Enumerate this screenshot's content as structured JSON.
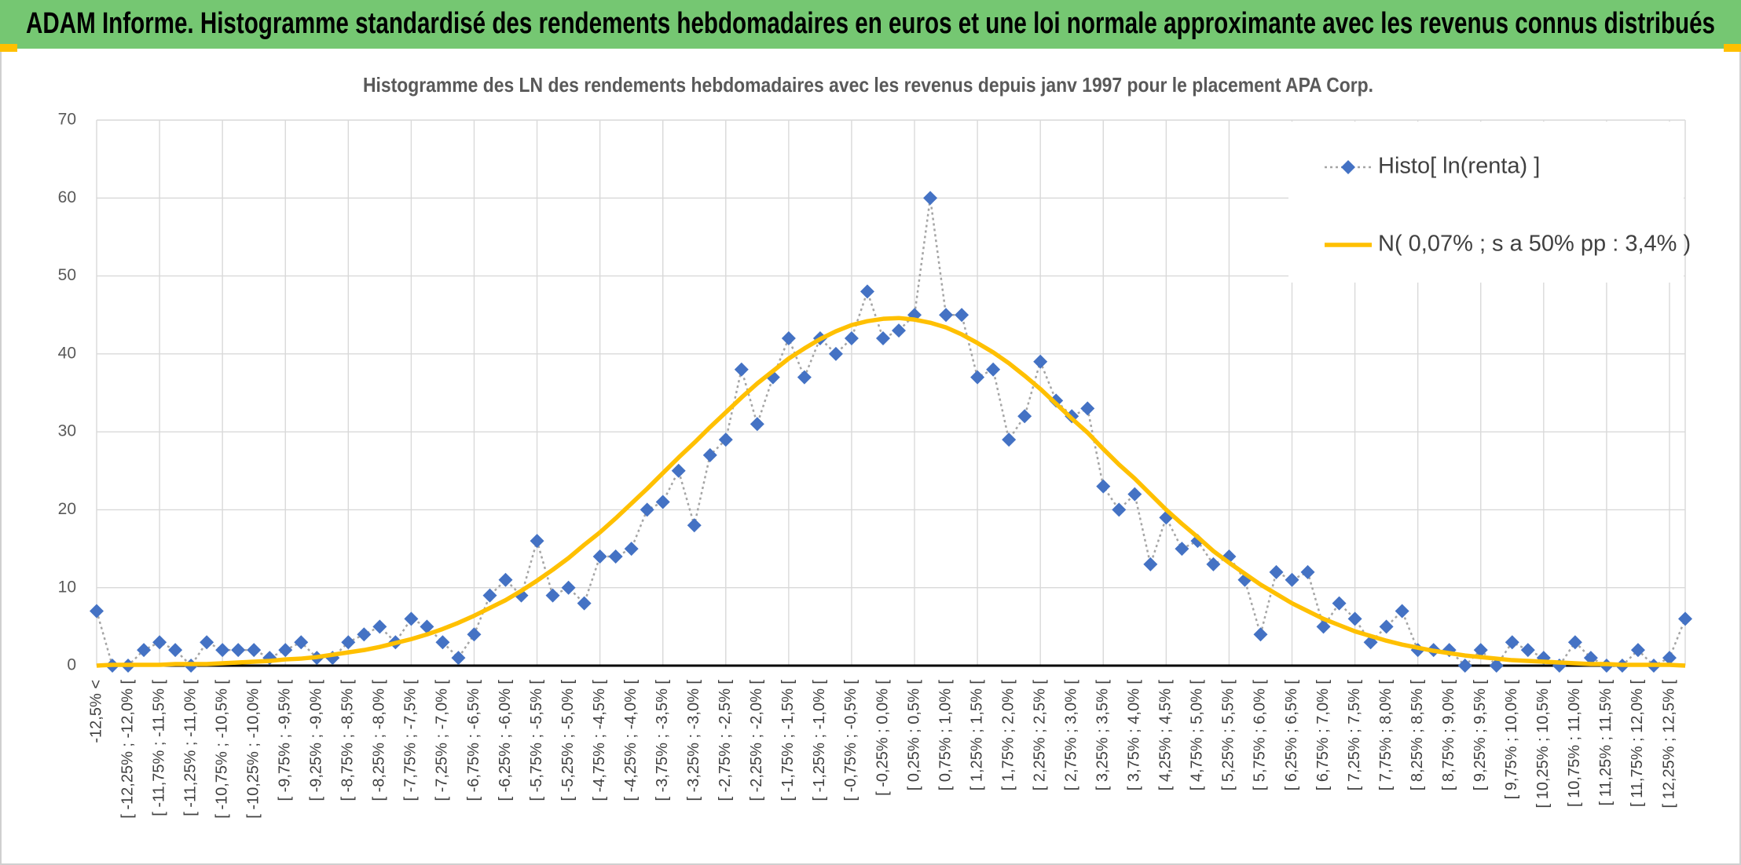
{
  "header": {
    "title": "ADAM Informe. Histogramme standardisé des rendements hebdomadaires en euros et une loi normale approximante avec les revenus connus distribués"
  },
  "chart_data": {
    "type": "line",
    "title": "Histogramme des LN des rendements hebdomadaires avec les revenus depuis janv 1997 pour le placement APA Corp.",
    "categories": [
      "-12,5% <",
      null,
      "[ -12,25% ; -12,0% [",
      null,
      "[ -11,75% ; -11,5% [",
      null,
      "[ -11,25% ; -11,0% [",
      null,
      "[ -10,75% ; -10,5% [",
      null,
      "[ -10,25% ; -10,0% [",
      null,
      "[ -9,75% ; -9,5% [",
      null,
      "[ -9,25% ; -9,0% [",
      null,
      "[ -8,75% ; -8,5% [",
      null,
      "[ -8,25% ; -8,0% [",
      null,
      "[ -7,75% ; -7,5% [",
      null,
      "[ -7,25% ; -7,0% [",
      null,
      "[ -6,75% ; -6,5% [",
      null,
      "[ -6,25% ; -6,0% [",
      null,
      "[ -5,75% ; -5,5% [",
      null,
      "[ -5,25% ; -5,0% [",
      null,
      "[ -4,75% ; -4,5% [",
      null,
      "[ -4,25% ; -4,0% [",
      null,
      "[ -3,75% ; -3,5% [",
      null,
      "[ -3,25% ; -3,0% [",
      null,
      "[ -2,75% ; -2,5% [",
      null,
      "[ -2,25% ; -2,0% [",
      null,
      "[ -1,75% ; -1,5% [",
      null,
      "[ -1,25% ; -1,0% [",
      null,
      "[ -0,75% ; -0,5% [",
      null,
      "[ -0,25% ; 0,0% [",
      null,
      "[ 0,25% ; 0,5% [",
      null,
      "[ 0,75% ; 1,0% [",
      null,
      "[ 1,25% ; 1,5% [",
      null,
      "[ 1,75% ; 2,0% [",
      null,
      "[ 2,25% ; 2,5% [",
      null,
      "[ 2,75% ; 3,0% [",
      null,
      "[ 3,25% ; 3,5% [",
      null,
      "[ 3,75% ; 4,0% [",
      null,
      "[ 4,25% ; 4,5% [",
      null,
      "[ 4,75% ; 5,0% [",
      null,
      "[ 5,25% ; 5,5% [",
      null,
      "[ 5,75% ; 6,0% [",
      null,
      "[ 6,25% ; 6,5% [",
      null,
      "[ 6,75% ; 7,0% [",
      null,
      "[ 7,25% ; 7,5% [",
      null,
      "[ 7,75% ; 8,0% [",
      null,
      "[ 8,25% ; 8,5% [",
      null,
      "[ 8,75% ; 9,0% [",
      null,
      "[ 9,25% ; 9,5% [",
      null,
      "[ 9,75% ; 10,0% [",
      null,
      "[ 10,25% ; 10,5% [",
      null,
      "[ 10,75% ; 11,0% [",
      null,
      "[ 11,25% ; 11,5% [",
      null,
      "[ 11,75% ; 12,0% [",
      null,
      "[ 12,25% ; 12,5% [",
      null
    ],
    "series": [
      {
        "name": "Histo[ ln(renta) ]",
        "color": "#4472c4",
        "line_color": "#a5a5a5",
        "line_style": "dotted",
        "marker": "diamond",
        "values": [
          7,
          0,
          0,
          2,
          3,
          2,
          0,
          3,
          2,
          2,
          2,
          1,
          2,
          3,
          1,
          1,
          3,
          4,
          5,
          3,
          6,
          5,
          3,
          1,
          4,
          9,
          11,
          9,
          16,
          9,
          10,
          8,
          14,
          14,
          15,
          20,
          21,
          25,
          18,
          27,
          29,
          38,
          31,
          37,
          42,
          37,
          42,
          40,
          42,
          48,
          42,
          43,
          45,
          60,
          45,
          45,
          37,
          38,
          29,
          32,
          39,
          34,
          32,
          33,
          23,
          20,
          22,
          13,
          19,
          15,
          16,
          13,
          14,
          11,
          4,
          12,
          11,
          12,
          5,
          8,
          6,
          3,
          5,
          7,
          2,
          2,
          2,
          0,
          2,
          0,
          3,
          2,
          1,
          0,
          3,
          1,
          0,
          0,
          2,
          0,
          1,
          6
        ]
      },
      {
        "name": "N( 0,07% ; s a 50% pp : 3,4% )",
        "color": "#ffc000",
        "line_style": "solid",
        "marker": "none",
        "values": [
          0.0,
          0.1,
          0.1,
          0.1,
          0.1,
          0.2,
          0.2,
          0.2,
          0.3,
          0.4,
          0.5,
          0.6,
          0.8,
          0.9,
          1.1,
          1.4,
          1.7,
          2.0,
          2.4,
          2.9,
          3.4,
          4.0,
          4.7,
          5.5,
          6.4,
          7.4,
          8.4,
          9.6,
          10.9,
          12.3,
          13.8,
          15.5,
          17.1,
          18.9,
          20.8,
          22.7,
          24.7,
          26.7,
          28.6,
          30.6,
          32.5,
          34.4,
          36.2,
          37.8,
          39.4,
          40.7,
          41.9,
          42.9,
          43.7,
          44.2,
          44.5,
          44.6,
          44.4,
          44.0,
          43.4,
          42.5,
          41.4,
          40.2,
          38.8,
          37.2,
          35.5,
          33.6,
          31.7,
          29.9,
          27.8,
          25.8,
          24.0,
          22.0,
          20.0,
          18.2,
          16.5,
          14.7,
          13.2,
          11.8,
          10.4,
          9.2,
          8.0,
          7.0,
          6.0,
          5.2,
          4.4,
          3.8,
          3.2,
          2.7,
          2.3,
          1.9,
          1.6,
          1.3,
          1.1,
          0.9,
          0.7,
          0.6,
          0.5,
          0.4,
          0.3,
          0.2,
          0.2,
          0.1,
          0.1,
          0.1,
          0.1,
          0.0
        ]
      }
    ],
    "ylim": [
      0,
      70
    ],
    "yticks": [
      0,
      10,
      20,
      30,
      40,
      50,
      60,
      70
    ],
    "grid": true,
    "legend": "top-right"
  }
}
